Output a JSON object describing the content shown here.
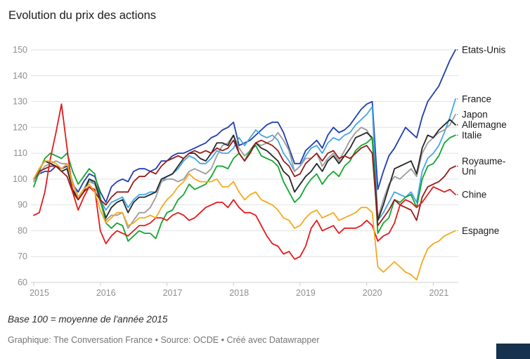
{
  "chart_data": {
    "type": "line",
    "title": "Evolution du prix des actions",
    "note": "Base 100 = moyenne de l'année 2015",
    "caption": "Graphique: The Conversation France • Source: OCDE • Créé avec Datawrapper",
    "x_unit": "month",
    "x_start": "2015-01",
    "x_end": "2021-05",
    "x_ticks": [
      2015,
      2016,
      2017,
      2018,
      2019,
      2020,
      2021
    ],
    "ylim": [
      60,
      150
    ],
    "y_ticks": [
      60,
      70,
      80,
      90,
      100,
      110,
      120,
      130,
      140,
      150
    ],
    "grid": "horizontal",
    "legend_position": "right-edge-labels",
    "series": [
      {
        "name": "Etats-Unis",
        "label_lines": [
          "Etats-Unis"
        ],
        "color": "#1f3dae",
        "values": [
          100,
          102,
          103,
          103,
          105,
          104,
          105,
          98,
          95,
          99,
          102,
          101,
          95,
          91,
          97,
          99,
          100,
          99,
          103,
          104,
          104,
          103,
          104,
          107,
          107,
          109,
          110,
          110,
          111,
          112,
          113,
          114,
          116,
          117,
          119,
          120,
          122,
          113,
          114,
          115,
          117,
          119,
          121,
          122,
          122,
          118,
          112,
          106,
          106,
          111,
          113,
          115,
          112,
          117,
          120,
          118,
          119,
          121,
          124,
          127,
          129,
          130,
          96,
          103,
          109,
          112,
          116,
          120,
          118,
          116,
          124,
          130,
          133,
          136,
          141,
          146,
          150
        ]
      },
      {
        "name": "France",
        "label_lines": [
          "France"
        ],
        "color": "#45a5e6",
        "values": [
          100,
          104,
          107,
          106,
          105,
          103,
          104,
          96,
          93,
          96,
          100,
          98,
          92,
          88,
          91,
          92,
          93,
          89,
          92,
          94,
          94,
          95,
          95,
          99,
          101,
          102,
          104,
          107,
          109,
          108,
          106,
          106,
          108,
          111,
          110,
          110,
          112,
          116,
          113,
          116,
          119,
          117,
          116,
          117,
          115,
          110,
          107,
          103,
          105,
          109,
          112,
          113,
          110,
          114,
          116,
          115,
          117,
          118,
          121,
          123,
          125,
          128,
          84,
          87,
          91,
          95,
          94,
          93,
          95,
          91,
          103,
          108,
          110,
          113,
          118,
          124,
          131
        ]
      },
      {
        "name": "Japon",
        "label_lines": [
          "Japon"
        ],
        "color": "#9c9c9c",
        "values": [
          99,
          102,
          105,
          106,
          107,
          106,
          106,
          99,
          93,
          96,
          99,
          98,
          91,
          84,
          86,
          86,
          87,
          81,
          84,
          87,
          87,
          89,
          93,
          99,
          100,
          100,
          99,
          100,
          103,
          104,
          103,
          102,
          104,
          109,
          113,
          114,
          117,
          112,
          109,
          111,
          114,
          113,
          114,
          115,
          118,
          115,
          111,
          103,
          105,
          108,
          108,
          110,
          105,
          108,
          110,
          107,
          111,
          115,
          118,
          120,
          119,
          115,
          85,
          92,
          98,
          101,
          100,
          102,
          104,
          101,
          110,
          114,
          116,
          118,
          119,
          121,
          125
        ]
      },
      {
        "name": "Allemagne",
        "label_lines": [
          "Allemagne"
        ],
        "color": "#262626",
        "values": [
          100,
          104,
          107,
          106,
          105,
          103,
          104,
          96,
          92,
          95,
          100,
          99,
          92,
          85,
          89,
          91,
          92,
          87,
          91,
          93,
          93,
          94,
          95,
          100,
          101,
          102,
          105,
          108,
          110,
          110,
          108,
          107,
          110,
          114,
          114,
          113,
          117,
          110,
          107,
          111,
          114,
          112,
          111,
          109,
          107,
          103,
          101,
          95,
          98,
          101,
          103,
          106,
          103,
          107,
          109,
          106,
          109,
          112,
          116,
          117,
          118,
          116,
          84,
          90,
          97,
          104,
          105,
          106,
          107,
          102,
          112,
          117,
          116,
          119,
          121,
          123,
          121
        ]
      },
      {
        "name": "Italie",
        "label_lines": [
          "Italie"
        ],
        "color": "#12a52e",
        "values": [
          97,
          103,
          108,
          110,
          109,
          108,
          110,
          103,
          98,
          101,
          104,
          102,
          93,
          83,
          81,
          83,
          82,
          76,
          78,
          80,
          79,
          79,
          77,
          83,
          87,
          88,
          92,
          94,
          98,
          96,
          97,
          98,
          101,
          105,
          105,
          104,
          108,
          110,
          107,
          111,
          113,
          109,
          108,
          107,
          105,
          99,
          95,
          91,
          93,
          97,
          100,
          102,
          98,
          101,
          103,
          101,
          105,
          107,
          111,
          113,
          114,
          116,
          79,
          83,
          85,
          92,
          91,
          93,
          94,
          89,
          100,
          105,
          106,
          109,
          114,
          116,
          117
        ]
      },
      {
        "name": "Royaume-Uni",
        "label_lines": [
          "Royaume-",
          "Uni"
        ],
        "color": "#961c1c",
        "values": [
          100,
          103,
          104,
          105,
          105,
          103,
          101,
          95,
          92,
          95,
          97,
          95,
          92,
          90,
          93,
          95,
          95,
          95,
          99,
          101,
          101,
          103,
          102,
          105,
          107,
          108,
          109,
          108,
          110,
          111,
          110,
          111,
          110,
          112,
          111,
          112,
          115,
          110,
          107,
          110,
          114,
          115,
          114,
          113,
          111,
          107,
          105,
          101,
          102,
          106,
          108,
          110,
          107,
          110,
          111,
          108,
          109,
          108,
          110,
          112,
          113,
          110,
          82,
          85,
          88,
          92,
          90,
          89,
          88,
          84,
          93,
          97,
          98,
          99,
          101,
          104,
          105
        ]
      },
      {
        "name": "Chine",
        "label_lines": [
          "Chine"
        ],
        "color": "#e41a1c",
        "values": [
          86,
          87,
          95,
          108,
          118,
          129,
          112,
          95,
          88,
          93,
          97,
          96,
          80,
          75,
          78,
          80,
          79,
          78,
          80,
          82,
          82,
          83,
          85,
          85,
          84,
          86,
          87,
          86,
          84,
          85,
          87,
          89,
          90,
          91,
          91,
          89,
          92,
          89,
          87,
          87,
          86,
          82,
          78,
          75,
          74,
          71,
          72,
          69,
          70,
          74,
          81,
          84,
          80,
          81,
          82,
          79,
          81,
          81,
          81,
          82,
          84,
          82,
          76,
          78,
          79,
          83,
          90,
          92,
          91,
          89,
          91,
          94,
          97,
          96,
          95,
          96,
          94
        ]
      },
      {
        "name": "Espagne",
        "label_lines": [
          "Espagne"
        ],
        "color": "#f5a91e",
        "values": [
          100,
          104,
          107,
          107,
          106,
          104,
          106,
          98,
          93,
          96,
          98,
          95,
          88,
          83,
          85,
          87,
          87,
          82,
          83,
          85,
          85,
          86,
          85,
          89,
          92,
          94,
          97,
          99,
          102,
          100,
          99,
          99,
          99,
          100,
          97,
          97,
          99,
          95,
          92,
          94,
          95,
          92,
          91,
          90,
          88,
          85,
          84,
          81,
          82,
          85,
          87,
          88,
          85,
          86,
          87,
          84,
          85,
          86,
          87,
          89,
          89,
          87,
          66,
          64,
          66,
          68,
          66,
          64,
          63,
          61,
          68,
          73,
          75,
          76,
          78,
          79,
          80
        ]
      }
    ]
  }
}
